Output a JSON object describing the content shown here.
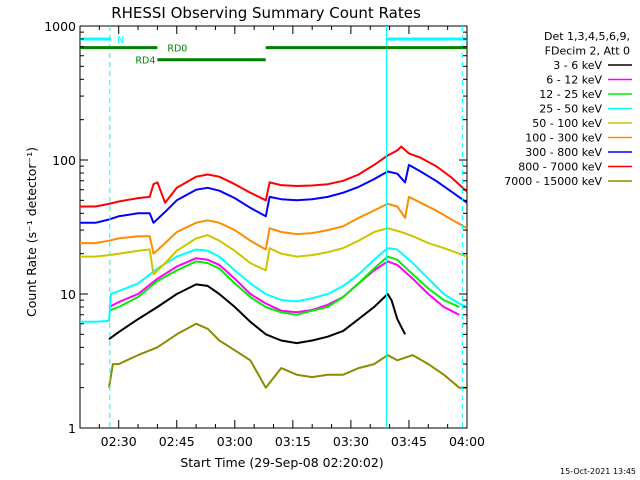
{
  "chart_data": {
    "type": "line",
    "title": "RHESSI Observing Summary Count Rates",
    "xlabel": "Start Time (29-Sep-08 02:20:02)",
    "ylabel": "Count Rate (s⁻¹ detector⁻¹)",
    "yscale": "log",
    "ylim": [
      1,
      1000
    ],
    "xlim_minutes": [
      140,
      240
    ],
    "x_ticks": [
      {
        "t": 150,
        "label": "02:30"
      },
      {
        "t": 165,
        "label": "02:45"
      },
      {
        "t": 180,
        "label": "03:00"
      },
      {
        "t": 195,
        "label": "03:15"
      },
      {
        "t": 210,
        "label": "03:30"
      },
      {
        "t": 225,
        "label": "03:45"
      },
      {
        "t": 240,
        "label": "04:00"
      }
    ],
    "y_ticks": [
      {
        "v": 1,
        "label": "1"
      },
      {
        "v": 10,
        "label": "10"
      },
      {
        "v": 100,
        "label": "100"
      },
      {
        "v": 1000,
        "label": "1000"
      }
    ],
    "legend_placement": "right",
    "legend_header": [
      "Det 1,3,4,5,6,9,",
      "FDecim 2, Att 0"
    ],
    "series": [
      {
        "name": "3 - 6 keV",
        "color": "#000000",
        "points": [
          [
            147.5,
            4.6
          ],
          [
            150,
            5.2
          ],
          [
            155,
            6.5
          ],
          [
            160,
            8
          ],
          [
            165,
            10
          ],
          [
            170,
            11.8
          ],
          [
            173,
            11.5
          ],
          [
            176,
            10
          ],
          [
            180,
            8
          ],
          [
            184,
            6.2
          ],
          [
            188,
            5
          ],
          [
            192,
            4.5
          ],
          [
            196,
            4.3
          ],
          [
            200,
            4.5
          ],
          [
            204,
            4.8
          ],
          [
            208,
            5.3
          ],
          [
            212,
            6.5
          ],
          [
            216,
            8
          ],
          [
            219.5,
            10
          ],
          [
            220.5,
            9
          ],
          [
            222,
            6.5
          ],
          [
            224,
            5
          ]
        ]
      },
      {
        "name": "6 - 12 keV",
        "color": "#ff00ff",
        "points": [
          [
            147.5,
            8
          ],
          [
            150,
            8.7
          ],
          [
            155,
            10
          ],
          [
            160,
            13
          ],
          [
            165,
            16
          ],
          [
            170,
            18.5
          ],
          [
            173,
            18
          ],
          [
            176,
            16.5
          ],
          [
            180,
            13
          ],
          [
            184,
            10
          ],
          [
            188,
            8.5
          ],
          [
            192,
            7.5
          ],
          [
            196,
            7.3
          ],
          [
            200,
            7.6
          ],
          [
            204,
            8.3
          ],
          [
            208,
            9.5
          ],
          [
            212,
            12
          ],
          [
            216,
            15
          ],
          [
            219.5,
            17.5
          ],
          [
            222,
            16.5
          ],
          [
            226,
            13
          ],
          [
            230,
            10
          ],
          [
            234,
            8
          ],
          [
            238,
            7
          ]
        ]
      },
      {
        "name": "12 - 25 keV",
        "color": "#00ee00",
        "points": [
          [
            147.5,
            7.5
          ],
          [
            150,
            8
          ],
          [
            155,
            9.5
          ],
          [
            160,
            12.5
          ],
          [
            165,
            15
          ],
          [
            170,
            17.5
          ],
          [
            173,
            17
          ],
          [
            176,
            15.5
          ],
          [
            180,
            12
          ],
          [
            184,
            9.5
          ],
          [
            188,
            8
          ],
          [
            192,
            7.3
          ],
          [
            196,
            7
          ],
          [
            200,
            7.5
          ],
          [
            204,
            8
          ],
          [
            208,
            9.5
          ],
          [
            212,
            12
          ],
          [
            216,
            15.5
          ],
          [
            219.5,
            19
          ],
          [
            222,
            18
          ],
          [
            226,
            14
          ],
          [
            230,
            11
          ],
          [
            234,
            9
          ],
          [
            238,
            8
          ]
        ]
      },
      {
        "name": "25 - 50 keV",
        "color": "#00ffff",
        "points": [
          [
            140,
            6.2
          ],
          [
            144,
            6.2
          ],
          [
            147.5,
            6.3
          ],
          [
            148,
            10
          ],
          [
            150,
            10.5
          ],
          [
            155,
            12
          ],
          [
            160,
            15.5
          ],
          [
            165,
            19
          ],
          [
            170,
            21.5
          ],
          [
            173,
            21
          ],
          [
            176,
            19
          ],
          [
            180,
            15
          ],
          [
            184,
            12
          ],
          [
            188,
            10
          ],
          [
            192,
            9
          ],
          [
            196,
            8.8
          ],
          [
            200,
            9.3
          ],
          [
            204,
            10
          ],
          [
            208,
            11.5
          ],
          [
            212,
            14
          ],
          [
            216,
            18
          ],
          [
            219.5,
            22
          ],
          [
            222,
            21.5
          ],
          [
            226,
            17
          ],
          [
            230,
            13
          ],
          [
            234,
            10
          ],
          [
            238,
            8.5
          ],
          [
            240,
            8
          ]
        ]
      },
      {
        "name": "50 - 100 keV",
        "color": "#d0c400",
        "points": [
          [
            140,
            19
          ],
          [
            144,
            19
          ],
          [
            147.5,
            19.5
          ],
          [
            150,
            20
          ],
          [
            155,
            21
          ],
          [
            158,
            21.5
          ],
          [
            159,
            14
          ],
          [
            162,
            17
          ],
          [
            165,
            21
          ],
          [
            170,
            26
          ],
          [
            173,
            27.5
          ],
          [
            176,
            25
          ],
          [
            180,
            21
          ],
          [
            184,
            17
          ],
          [
            188,
            15
          ],
          [
            189,
            22
          ],
          [
            192,
            20
          ],
          [
            196,
            19
          ],
          [
            200,
            19.5
          ],
          [
            204,
            20.5
          ],
          [
            208,
            22
          ],
          [
            212,
            25
          ],
          [
            216,
            29
          ],
          [
            219.5,
            31
          ],
          [
            223,
            29
          ],
          [
            226,
            27
          ],
          [
            230,
            24
          ],
          [
            234,
            22
          ],
          [
            238,
            20
          ],
          [
            240,
            19
          ]
        ]
      },
      {
        "name": "100 - 300 keV",
        "color": "#ff8c00",
        "points": [
          [
            140,
            24
          ],
          [
            144,
            24
          ],
          [
            147.5,
            25
          ],
          [
            150,
            26
          ],
          [
            155,
            27
          ],
          [
            158,
            27
          ],
          [
            159,
            20
          ],
          [
            162,
            24
          ],
          [
            165,
            29
          ],
          [
            170,
            34
          ],
          [
            173,
            35.5
          ],
          [
            176,
            34
          ],
          [
            180,
            30
          ],
          [
            184,
            25
          ],
          [
            188,
            21.5
          ],
          [
            189,
            31
          ],
          [
            192,
            29
          ],
          [
            196,
            28
          ],
          [
            200,
            28.5
          ],
          [
            204,
            30
          ],
          [
            208,
            32
          ],
          [
            212,
            37
          ],
          [
            216,
            42
          ],
          [
            219.5,
            47
          ],
          [
            222,
            45
          ],
          [
            224,
            37
          ],
          [
            225,
            53
          ],
          [
            228,
            48
          ],
          [
            232,
            42
          ],
          [
            236,
            36
          ],
          [
            240,
            31
          ]
        ]
      },
      {
        "name": "300 - 800 keV",
        "color": "#0000ff",
        "points": [
          [
            140,
            34
          ],
          [
            144,
            34
          ],
          [
            147.5,
            36
          ],
          [
            150,
            38
          ],
          [
            155,
            40
          ],
          [
            158,
            40
          ],
          [
            159,
            34
          ],
          [
            162,
            41
          ],
          [
            165,
            50
          ],
          [
            170,
            60
          ],
          [
            173,
            62
          ],
          [
            176,
            59
          ],
          [
            180,
            52
          ],
          [
            184,
            44
          ],
          [
            188,
            38
          ],
          [
            189,
            53
          ],
          [
            192,
            51
          ],
          [
            196,
            50
          ],
          [
            200,
            51
          ],
          [
            204,
            53
          ],
          [
            208,
            57
          ],
          [
            212,
            63
          ],
          [
            216,
            72
          ],
          [
            219.5,
            82
          ],
          [
            222,
            79
          ],
          [
            224,
            68
          ],
          [
            225,
            92
          ],
          [
            228,
            82
          ],
          [
            232,
            70
          ],
          [
            236,
            58
          ],
          [
            240,
            48
          ]
        ]
      },
      {
        "name": "800 - 7000 keV",
        "color": "#ff0000",
        "points": [
          [
            140,
            45
          ],
          [
            144,
            45
          ],
          [
            147.5,
            47
          ],
          [
            150,
            49
          ],
          [
            155,
            52
          ],
          [
            158,
            53
          ],
          [
            159,
            66
          ],
          [
            160,
            68
          ],
          [
            162,
            48
          ],
          [
            165,
            62
          ],
          [
            170,
            75
          ],
          [
            173,
            78
          ],
          [
            176,
            75
          ],
          [
            180,
            66
          ],
          [
            184,
            57
          ],
          [
            188,
            50
          ],
          [
            189,
            68
          ],
          [
            192,
            65
          ],
          [
            196,
            64
          ],
          [
            200,
            64.5
          ],
          [
            204,
            66
          ],
          [
            208,
            70
          ],
          [
            212,
            78
          ],
          [
            216,
            92
          ],
          [
            219.5,
            108
          ],
          [
            222,
            118
          ],
          [
            223,
            126
          ],
          [
            225,
            112
          ],
          [
            228,
            104
          ],
          [
            232,
            90
          ],
          [
            236,
            74
          ],
          [
            240,
            58
          ]
        ]
      },
      {
        "name": "7000 - 15000 keV",
        "color": "#8c8c00",
        "points": [
          [
            147.5,
            2
          ],
          [
            148.5,
            3
          ],
          [
            150,
            3
          ],
          [
            155,
            3.5
          ],
          [
            160,
            4
          ],
          [
            165,
            5
          ],
          [
            170,
            6
          ],
          [
            173,
            5.5
          ],
          [
            176,
            4.5
          ],
          [
            180,
            3.8
          ],
          [
            184,
            3.2
          ],
          [
            188,
            2
          ],
          [
            192,
            2.8
          ],
          [
            196,
            2.5
          ],
          [
            200,
            2.4
          ],
          [
            204,
            2.5
          ],
          [
            208,
            2.5
          ],
          [
            212,
            2.8
          ],
          [
            216,
            3
          ],
          [
            219.5,
            3.5
          ],
          [
            222,
            3.2
          ],
          [
            226,
            3.5
          ],
          [
            230,
            3
          ],
          [
            234,
            2.5
          ],
          [
            238,
            2
          ],
          [
            240,
            2
          ]
        ]
      }
    ],
    "state_bars": [
      {
        "label": "N",
        "color": "#00ffff",
        "y": 800,
        "segments": [
          [
            140,
            148
          ],
          [
            219,
            240
          ]
        ]
      },
      {
        "label": "RD0",
        "color": "#008000",
        "y": 690,
        "segments": [
          [
            140,
            160
          ],
          [
            188,
            240
          ]
        ]
      },
      {
        "label": "RD4",
        "color": "#008000",
        "y": 560,
        "segments": [
          [
            160,
            188
          ]
        ]
      }
    ],
    "attenuator_lines": [
      {
        "t": 147.7,
        "color": "#00ffff",
        "style": "dashed"
      },
      {
        "t": 219.2,
        "color": "#00ffff",
        "style": "solid"
      },
      {
        "t": 238.8,
        "color": "#00ffff",
        "style": "dashed"
      }
    ],
    "footer_date": "15-Oct-2021 13:45"
  }
}
